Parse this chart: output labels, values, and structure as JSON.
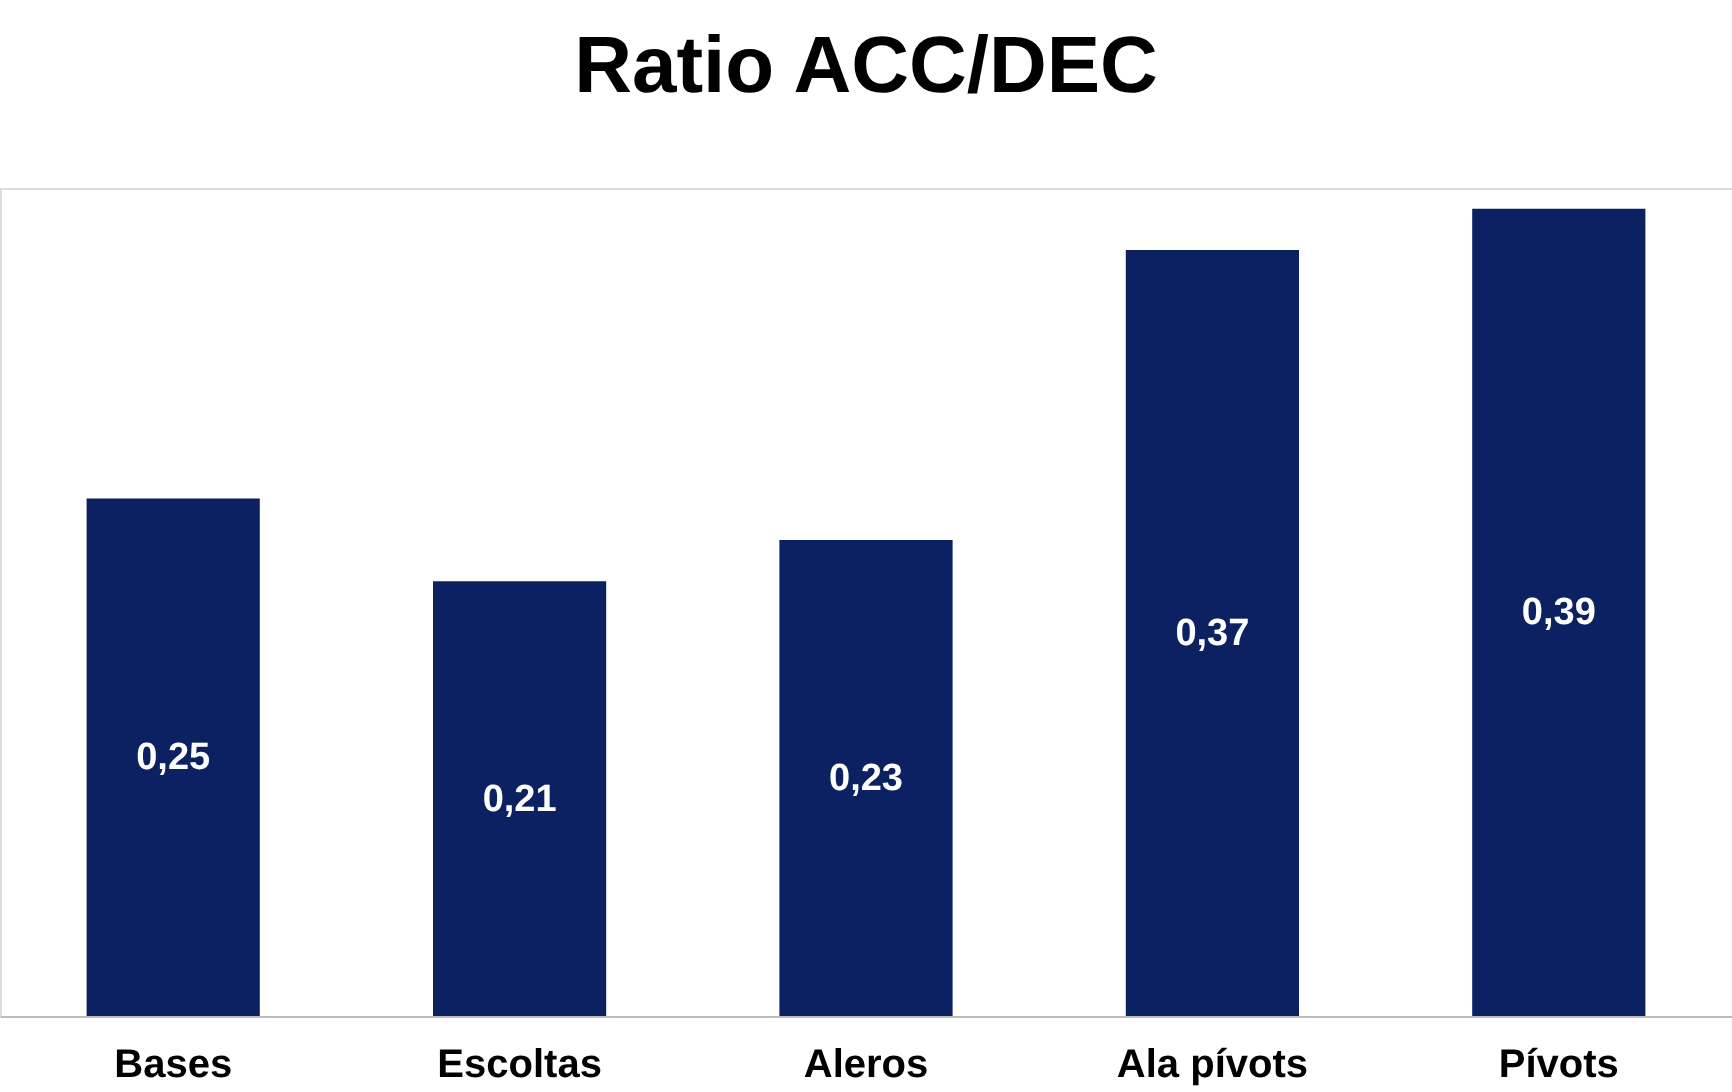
{
  "chart_data": {
    "type": "bar",
    "title": "Ratio ACC/DEC",
    "categories": [
      "Bases",
      "Escoltas",
      "Aleros",
      "Ala pívots",
      "Pívots"
    ],
    "values": [
      0.25,
      0.21,
      0.23,
      0.37,
      0.39
    ],
    "value_labels": [
      "0,25",
      "0,21",
      "0,23",
      "0,37",
      "0,39"
    ],
    "color": "#0b2161",
    "grid": false
  }
}
